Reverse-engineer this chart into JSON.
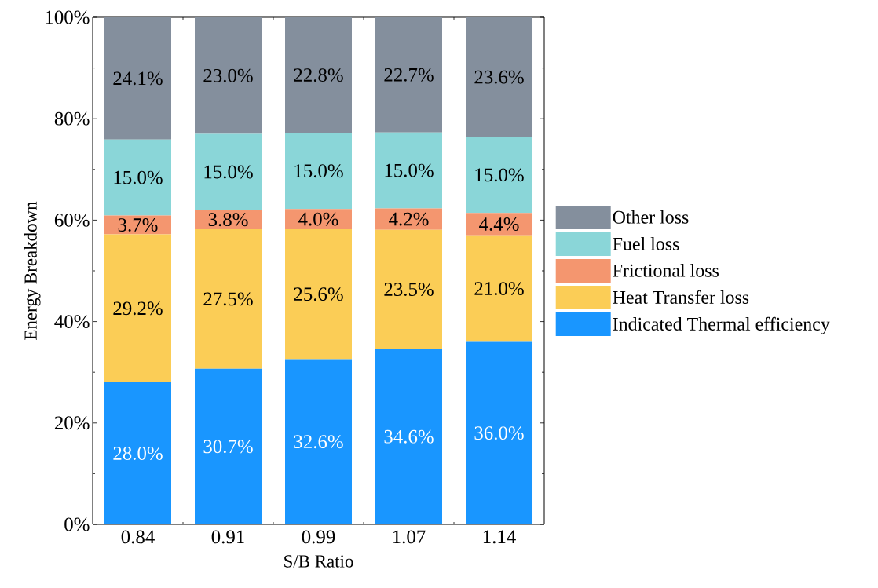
{
  "chart_data": {
    "type": "bar",
    "stacked": true,
    "xlabel": "S/B Ratio",
    "ylabel": "Energy Breakdown",
    "categories": [
      "0.84",
      "0.91",
      "0.99",
      "1.07",
      "1.14"
    ],
    "series": [
      {
        "name": "Indicated Thermal efficiency",
        "color": "#1996ff",
        "values": [
          28.0,
          30.7,
          32.6,
          34.6,
          36.0
        ],
        "value_labels": [
          "28.0%",
          "30.7%",
          "32.6%",
          "34.6%",
          "36.0%"
        ]
      },
      {
        "name": "Heat Transfer loss",
        "color": "#fbcd56",
        "values": [
          29.2,
          27.5,
          25.6,
          23.5,
          21.0
        ],
        "value_labels": [
          "29.2%",
          "27.5%",
          "25.6%",
          "23.5%",
          "21.0%"
        ]
      },
      {
        "name": "Frictional loss",
        "color": "#f4966f",
        "values": [
          3.7,
          3.8,
          4.0,
          4.2,
          4.4
        ],
        "value_labels": [
          "3.7%",
          "3.8%",
          "4.0%",
          "4.2%",
          "4.4%"
        ]
      },
      {
        "name": "Fuel loss",
        "color": "#8ad6d8",
        "values": [
          15.0,
          15.0,
          15.0,
          15.0,
          15.0
        ],
        "value_labels": [
          "15.0%",
          "15.0%",
          "15.0%",
          "15.0%",
          "15.0%"
        ]
      },
      {
        "name": "Other loss",
        "color": "#848f9d",
        "values": [
          24.1,
          23.0,
          22.8,
          22.7,
          23.6
        ],
        "value_labels": [
          "24.1%",
          "23.0%",
          "22.8%",
          "22.7%",
          "23.6%"
        ]
      }
    ],
    "ylim": [
      0,
      100
    ],
    "yticks": [
      {
        "value": 0,
        "label": "0%"
      },
      {
        "value": 20,
        "label": "20%"
      },
      {
        "value": 40,
        "label": "40%"
      },
      {
        "value": 60,
        "label": "60%"
      },
      {
        "value": 80,
        "label": "80%"
      },
      {
        "value": 100,
        "label": "100%"
      }
    ],
    "legend": "right",
    "grid": false
  }
}
